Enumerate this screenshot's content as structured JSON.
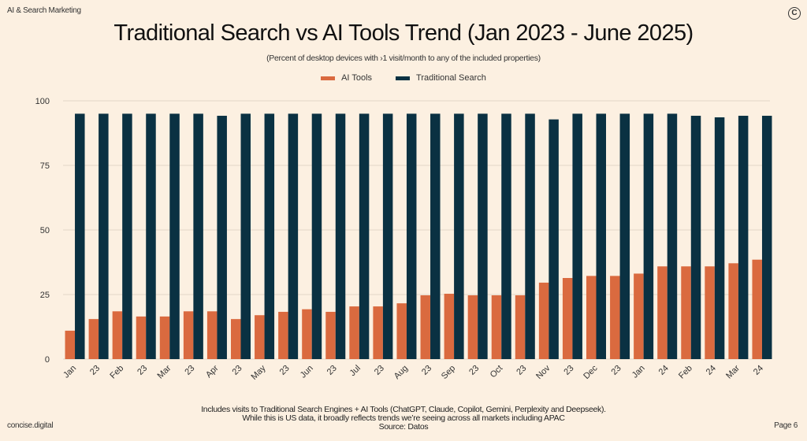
{
  "header": {
    "brand": "AI & Search Marketing",
    "logo_icon": "copyright-circle-icon",
    "logo_glyph": "C"
  },
  "chart_data": {
    "type": "bar",
    "title": "Traditional Search vs AI Tools Trend (Jan 2023 - June 2025)",
    "subtitle": "(Percent of desktop devices with ›1 visit/month to any of the included properties)",
    "xlabel": "",
    "ylabel": "",
    "ylim": [
      0,
      100
    ],
    "yticks": [
      0,
      25,
      50,
      75,
      100
    ],
    "grid": true,
    "legend_position": "top-center",
    "categories": [
      "Jan",
      "23",
      "Feb",
      "23",
      "Mar",
      "23",
      "Apr",
      "23",
      "May",
      "23",
      "Jun",
      "23",
      "Jul",
      "23",
      "Aug",
      "23",
      "Sep",
      "23",
      "Oct",
      "23",
      "Nov",
      "23",
      "Dec",
      "23",
      "Jan",
      "24",
      "Feb",
      "24",
      "Mar",
      "24"
    ],
    "series": [
      {
        "name": "AI Tools",
        "color": "#DA6A3F",
        "values": [
          11,
          15.5,
          18.5,
          16.5,
          16.5,
          18.5,
          18.5,
          15.5,
          17,
          18.3,
          19.3,
          18.3,
          20.4,
          20.4,
          21.6,
          24.7,
          25.3,
          24.7,
          24.7,
          24.7,
          29.6,
          31.4,
          32.2,
          32.2,
          33.1,
          35.9,
          35.9,
          35.9,
          37.1,
          38.5
        ]
      },
      {
        "name": "Traditional Search",
        "color": "#0A3142",
        "values": [
          95,
          95,
          95,
          95,
          95,
          95,
          94.2,
          95,
          95,
          95,
          95,
          95,
          95,
          95,
          95,
          95,
          95,
          95,
          95,
          95,
          92.8,
          95,
          95,
          95,
          95,
          95,
          94.2,
          93.6,
          94.2,
          94.2
        ]
      }
    ]
  },
  "footer": {
    "note_lines": [
      "Includes visits to Traditional Search Engines + AI Tools (ChatGPT, Claude, Copilot, Gemini, Perplexity and Deepseek).",
      "While this is US data, it broadly reflects trends we’re seeing across all markets including APAC",
      "Source: Datos"
    ],
    "brand": "concise.digital",
    "page": "Page 6"
  }
}
